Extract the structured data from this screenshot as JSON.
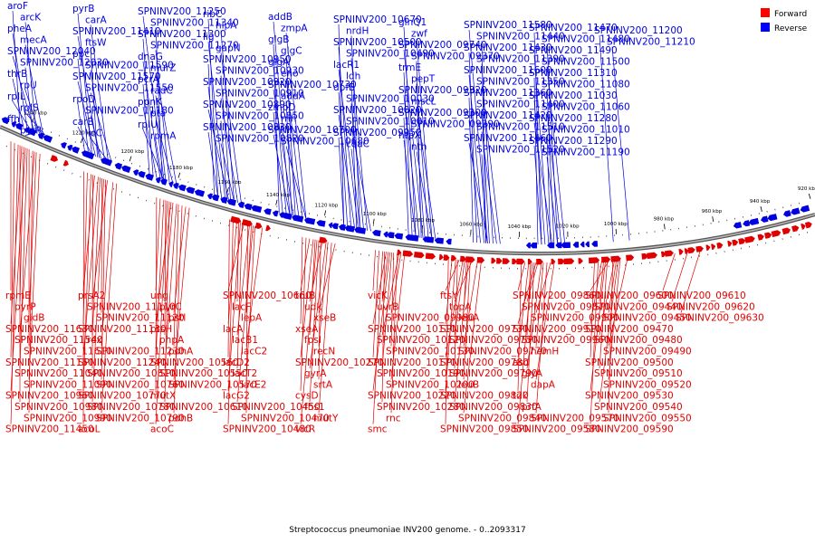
{
  "caption": "Streptococcus pneumoniae INV200 genome. - 0..2093317",
  "legend": [
    {
      "label": "Forward",
      "color": "#ff0000"
    },
    {
      "label": "Reverse",
      "color": "#0000ff"
    }
  ],
  "colors": {
    "forward": "#e00000",
    "reverse": "#0000e0",
    "backbone": "#888888"
  },
  "ticks": [
    "1240 kbp",
    "1220 kbp",
    "1200 kbp",
    "1180 kbp",
    "1160 kbp",
    "1140 kbp",
    "1120 kbp",
    "1100 kbp",
    "1080 kbp",
    "1060 kbp",
    "1040 kbp",
    "1020 kbp",
    "1000 kbp",
    "980 kbp",
    "960 kbp",
    "940 kbp",
    "920 kbp"
  ],
  "reverse_labels": [
    "aroF",
    "arcK",
    "pheA",
    "mecA",
    "SPNINV200_12040",
    "SPNINV200_12030",
    "thrB",
    "rpU",
    "rpIL",
    "rpIS",
    "ffh",
    "pyrR",
    "pyrB",
    "carA",
    "SPNINV200_11410",
    "ftsW",
    "ppc",
    "SPNINV200_11590",
    "SPNINV200_11570",
    "SPNINV200_11550",
    "rpoD",
    "SPNINV200_11180",
    "carB",
    "licC",
    "SPNINV200_11250",
    "SPNINV200_11340",
    "SPNINV200_11300",
    "SPNINV200_11270",
    "dnaG",
    "murZ",
    "pcrA",
    "radC",
    "ppnK",
    "pta",
    "rpIU",
    "rpmA",
    "ribC",
    "hlpA",
    "lig",
    "gapN",
    "SPNINV200_10950",
    "SPNINV200_10930",
    "SPNINV200_10920",
    "SPNINV200_10910",
    "SPNINV200_10890",
    "SPNINV200_10850",
    "SPNINV200_10830",
    "SPNINV200_10820",
    "addB",
    "zmpA",
    "glgB",
    "glgC",
    "glgA",
    "eno",
    "SPNINV200_10730",
    "addA",
    "zmpD",
    "rnh",
    "SPNINV200_10700",
    "SPNINV200_10680",
    "SPNINV200_10670",
    "nrdH",
    "SPNINV200_10500",
    "SPNINV200_10490",
    "lacR1",
    "ldh",
    "dpfB",
    "SPNINV200_10030",
    "SPNINV200_10020",
    "SPNINV200_10010",
    "SPNINV200_09950",
    "coaC",
    "glnQ1",
    "zwf",
    "SPNINV200_09740",
    "SPNINV200_09370",
    "trmE",
    "pepT",
    "SPNINV200_09320",
    "mscL",
    "SPNINV200_09300",
    "SPNINV200_09290",
    "htpX",
    "nth",
    "SPNINV200_11580",
    "SPNINV200_11440",
    "SPNINV200_11430",
    "SPNINV200_11390",
    "SPNINV200_11600",
    "SPNINV200_11350",
    "SPNINV200_11360",
    "SPNINV200_11400",
    "SPNINV200_11420",
    "SPNINV200_11510",
    "SPNINV200_11460",
    "SPNINV200_11520",
    "SPNINV200_11470",
    "SPNINV200_11480",
    "SPNINV200_11490",
    "SPNINV200_11500",
    "SPNINV200_11310",
    "SPNINV200_11080",
    "SPNINV200_11030",
    "SPNINV200_11060",
    "SPNINV200_11280",
    "SPNINV200_11010",
    "SPNINV200_11290",
    "SPNINV200_11190",
    "SPNINV200_11200",
    "SPNINV200_11210"
  ],
  "forward_labels": [
    "rpmE",
    "pyrP",
    "gidB",
    "SPNINV200_11630",
    "SPNINV200_11540",
    "SPNINV200_11610",
    "SPNINV200_11150",
    "SPNINV200_11040",
    "SPNINV200_11090",
    "SPNINV200_10960",
    "SPNINV200_10980",
    "SPNINV200_10990",
    "SPNINV200_11450",
    "prsA2",
    "SPNINV200_11110",
    "SPNINV200_11120",
    "SPNINV200_11130",
    "rex",
    "SPNINV200_11230",
    "SPNINV200_11240",
    "SPNINV200_10810",
    "SPNINV200_10760",
    "SPNINV200_10770",
    "SPNINV200_10780",
    "SPNINV200_10790",
    "acoL",
    "ung",
    "pyrC",
    "pstI",
    "ptsH",
    "phpA",
    "pdhA",
    "SPNINV200_10560",
    "SPNINV200_10550",
    "SPNINV200_10570",
    "mutX",
    "SPNINV200_10610",
    "pdhB",
    "acoC",
    "SPNINV200_10660",
    "lacF",
    "lepA",
    "lacA",
    "lacB1",
    "lacC2",
    "lacD2",
    "lacT2",
    "lacE2",
    "lacG2",
    "SPNINV200_10450",
    "SPNINV200_10470",
    "SPNINV200_10480",
    "truB",
    "udk",
    "xseB",
    "xseA",
    "fpsI",
    "recN",
    "SPNINV200_10270",
    "gyrA",
    "srtA",
    "cysD",
    "fhs1",
    "mutY",
    "vicR",
    "vicK",
    "uvrB",
    "SPNINV200_09980",
    "SPNINV200_10110",
    "SPNINV200_10120",
    "SPNINV200_10130",
    "SPNINV200_10170",
    "SPNINV200_10190",
    "SPNINV200_10200",
    "SPNINV200_10220",
    "SPNINV200_10280",
    "rnc",
    "smc",
    "ftsY",
    "topA",
    "leuA",
    "SPNINV200_09730",
    "SPNINV200_09750",
    "SPNINV200_09770",
    "SPNINV200_09780",
    "SPNINV200_09790",
    "leuB",
    "SPNINV200_09820",
    "SPNINV200_09830",
    "SPNINV200_09840",
    "SPNINV200_09850",
    "SPNINV200_09860",
    "SPNINV200_09870",
    "SPNINV200_09900",
    "SPNINV200_09910",
    "SPNINV200_09960",
    "hemH",
    "asd",
    "glyA",
    "dapA",
    "tdk",
    "prfA",
    "SPNINV200_09570",
    "SPNINV200_09580",
    "SPNINV200_09600",
    "SPNINV200_09440",
    "SPNINV200_09450",
    "SPNINV200_09470",
    "SPNINV200_09480",
    "SPNINV200_09490",
    "SPNINV200_09500",
    "SPNINV200_09510",
    "SPNINV200_09520",
    "SPNINV200_09530",
    "SPNINV200_09540",
    "SPNINV200_09550",
    "SPNINV200_09590",
    "SPNINV200_09610",
    "SPNINV200_09620",
    "SPNINV200_09630"
  ]
}
